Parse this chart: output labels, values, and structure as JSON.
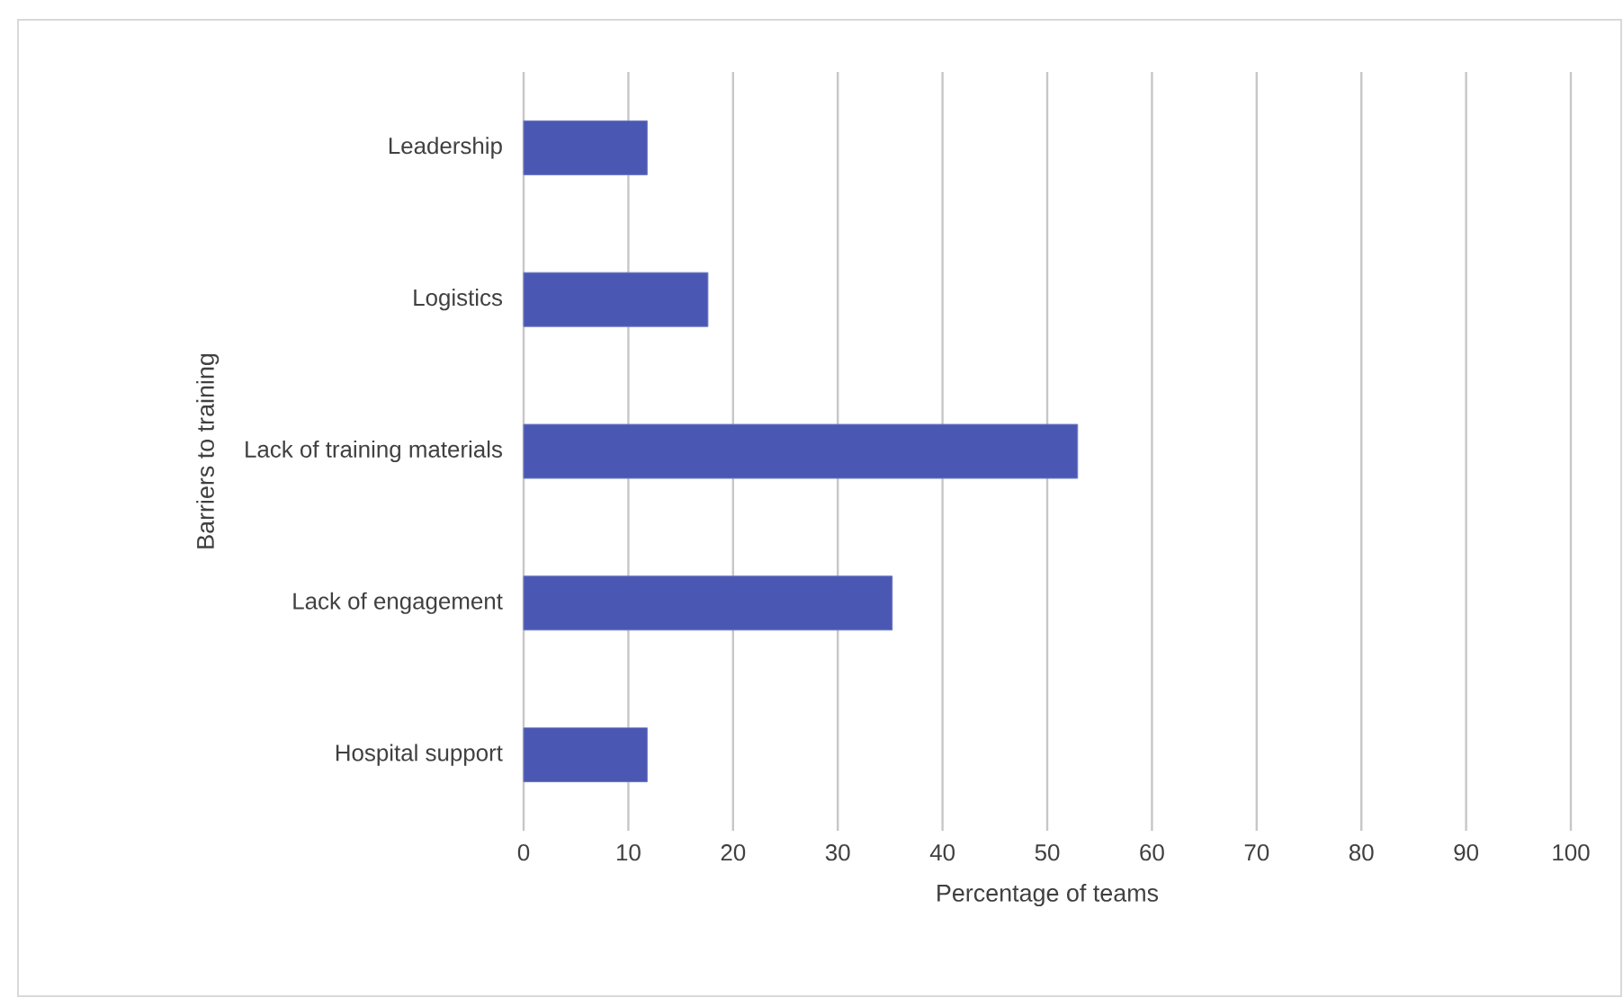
{
  "chart_data": {
    "type": "bar",
    "orientation": "horizontal",
    "categories": [
      "Leadership",
      "Logistics",
      "Lack of training materials",
      "Lack of engagement",
      "Hospital support"
    ],
    "values": [
      11.8,
      17.6,
      52.9,
      35.2,
      11.8
    ],
    "color": "#4a58b3",
    "xlabel": "Percentage of teams",
    "ylabel": "Barriers to training",
    "xlim": [
      0,
      100
    ],
    "xticks": [
      0,
      10,
      20,
      30,
      40,
      50,
      60,
      70,
      80,
      90,
      100
    ],
    "grid": "x"
  }
}
